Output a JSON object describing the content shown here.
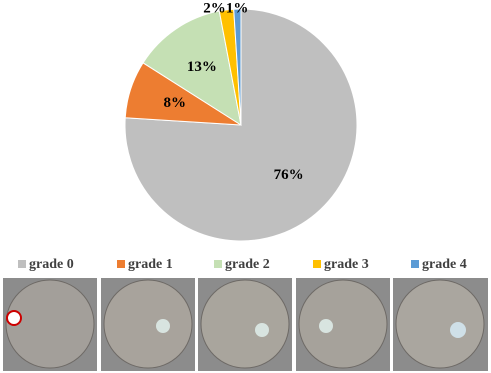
{
  "chart_data": {
    "type": "pie",
    "categories": [
      "grade 0",
      "grade 1",
      "grade 2",
      "grade 3",
      "grade 4"
    ],
    "values": [
      76,
      8,
      13,
      2,
      1
    ],
    "value_labels": [
      "76%",
      "8%",
      "13%",
      "2%",
      "1%"
    ],
    "colors": [
      "#bfbfbf",
      "#ed7d31",
      "#c5e0b4",
      "#ffc000",
      "#5b9bd5"
    ]
  }
}
